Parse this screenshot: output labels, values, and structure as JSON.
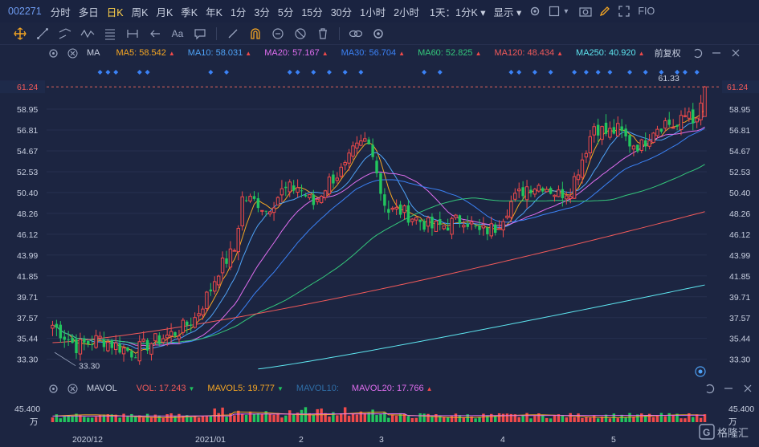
{
  "toolbar": {
    "symbol": "002271",
    "timeframes": [
      "分时",
      "多日",
      "日K",
      "周K",
      "月K",
      "季K",
      "年K",
      "1分",
      "3分",
      "5分",
      "15分",
      "30分",
      "1小时",
      "2小时"
    ],
    "active": "日K",
    "period_select": "1天：1分K",
    "display_select": "显示",
    "fio_label": "FIO"
  },
  "ma_bar": {
    "name": "MA",
    "items": [
      {
        "label": "MA5: 58.542",
        "color": "#f5a623",
        "dir": "up"
      },
      {
        "label": "MA10: 58.031",
        "color": "#4fa3f7",
        "dir": "up"
      },
      {
        "label": "MA20: 57.167",
        "color": "#e06ef0",
        "dir": "up"
      },
      {
        "label": "MA30: 56.704",
        "color": "#3b82f6",
        "dir": "up"
      },
      {
        "label": "MA60: 52.825",
        "color": "#34c77b",
        "dir": "up"
      },
      {
        "label": "MA120: 48.434",
        "color": "#f25a5a",
        "dir": "up"
      },
      {
        "label": "MA250: 40.920",
        "color": "#5ee6f0",
        "dir": "up"
      }
    ],
    "adjust": "前复权"
  },
  "price_axis": {
    "ticks": [
      "58.95",
      "56.81",
      "54.67",
      "52.53",
      "50.40",
      "48.26",
      "46.12",
      "43.99",
      "41.85",
      "39.71",
      "37.57",
      "35.44",
      "33.30"
    ],
    "current": "61.24",
    "high_label": "61.33",
    "low_label": "33.30"
  },
  "vol_bar": {
    "name": "MAVOL",
    "items": [
      {
        "label": "VOL: 17.243",
        "color": "#f25a5a",
        "dir": "down"
      },
      {
        "label": "MAVOL5: 19.777",
        "color": "#f5a623",
        "dir": "down"
      },
      {
        "label": "MAVOL10:",
        "color": "#2f6fa8",
        "dir": ""
      },
      {
        "label": "MAVOL20: 17.766",
        "color": "#e06ef0",
        "dir": "up"
      }
    ],
    "axis_top": "45.400",
    "axis_unit": "万"
  },
  "date_labels": [
    "2020/12",
    "2021/01",
    "2",
    "3",
    "4",
    "5"
  ],
  "watermark": "格隆汇",
  "chart_data": {
    "type": "candlestick",
    "ylim": [
      32.2,
      62.0
    ],
    "seed": 7,
    "ma_end": {
      "MA5": 58.542,
      "MA10": 58.031,
      "MA20": 57.167,
      "MA30": 56.704,
      "MA60": 52.825,
      "MA120": 48.434,
      "MA250": 40.92
    },
    "last_volume": 17.243,
    "mavol5": 19.777,
    "mavol20": 17.766
  }
}
